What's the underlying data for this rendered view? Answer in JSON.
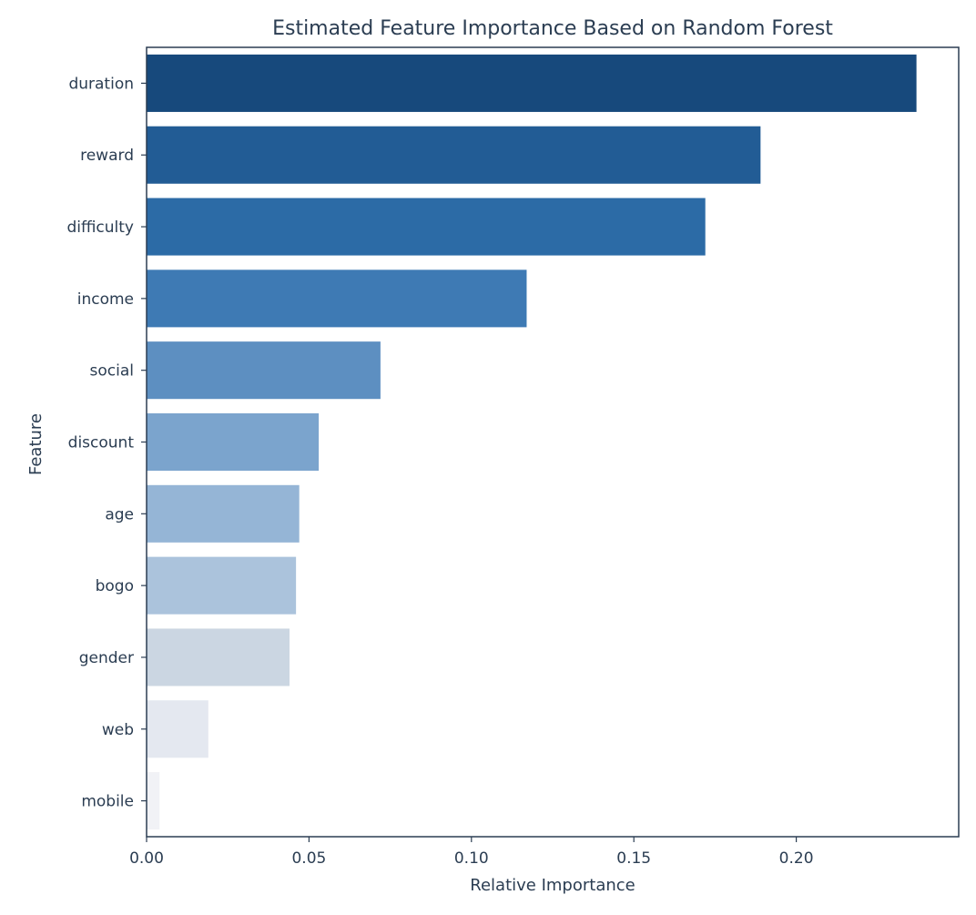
{
  "chart_data": {
    "type": "bar",
    "orientation": "horizontal",
    "title": "Estimated Feature Importance Based on Random Forest",
    "xlabel": "Relative Importance",
    "ylabel": "Feature",
    "categories": [
      "duration",
      "reward",
      "difficulty",
      "income",
      "social",
      "discount",
      "age",
      "bogo",
      "gender",
      "web",
      "mobile"
    ],
    "values": [
      0.237,
      0.189,
      0.172,
      0.117,
      0.072,
      0.053,
      0.047,
      0.046,
      0.044,
      0.019,
      0.004
    ],
    "colors": [
      "#17497c",
      "#225c95",
      "#2c6ba6",
      "#3e7ab4",
      "#5d8fc1",
      "#7ba4cd",
      "#95b5d6",
      "#abc3dc",
      "#cbd6e2",
      "#e4e8f0",
      "#f1f2f6"
    ],
    "xlim": [
      0,
      0.25
    ],
    "xticks": [
      0.0,
      0.05,
      0.1,
      0.15,
      0.2
    ],
    "xtick_labels": [
      "0.00",
      "0.05",
      "0.10",
      "0.15",
      "0.20"
    ],
    "grid": false,
    "legend": "none"
  }
}
